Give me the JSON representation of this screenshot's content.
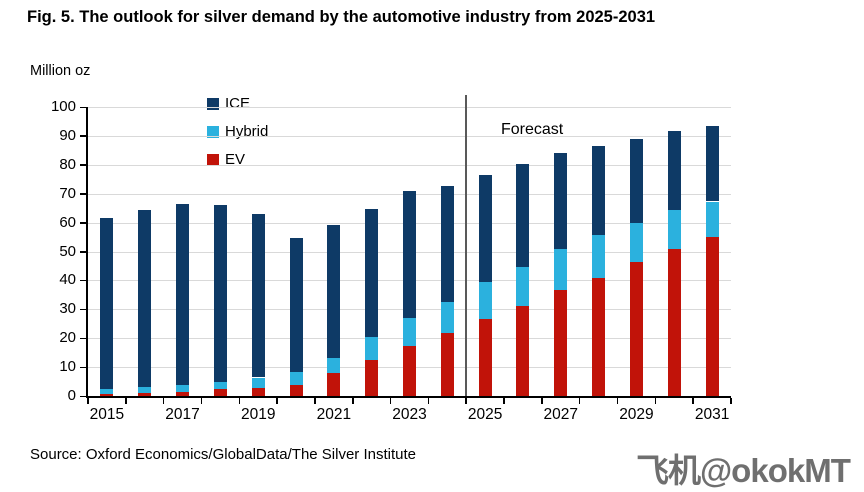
{
  "title": "Fig. 5. The outlook for silver demand by the automotive industry from 2025-2031",
  "y_axis_unit": "Million oz",
  "forecast_label": "Forecast",
  "source": "Source: Oxford Economics/GlobalData/The Silver Institute",
  "watermark": "飞机@okokMT",
  "colors": {
    "ice": "#0e3a66",
    "hybrid": "#2bb1de",
    "ev": "#c11309",
    "gridline": "#d9d9d9",
    "axis": "#000000",
    "forecast_divider": "#595959",
    "watermark": "#6f6f6f"
  },
  "legend": [
    {
      "name": "ice",
      "label": "ICE",
      "color": "#0e3a66"
    },
    {
      "name": "hybrid",
      "label": "Hybrid",
      "color": "#2bb1de"
    },
    {
      "name": "ev",
      "label": "EV",
      "color": "#c11309"
    }
  ],
  "chart_data": {
    "type": "bar",
    "stacked": true,
    "title": "Fig. 5. The outlook for silver demand by the automotive industry from 2025-2031",
    "ylabel": "Million oz",
    "xlabel": "",
    "ylim": [
      0,
      100
    ],
    "ytick_step": 10,
    "grid": true,
    "legend_position": "top-left-vertical",
    "categories": [
      2015,
      2016,
      2017,
      2018,
      2019,
      2020,
      2021,
      2022,
      2023,
      2024,
      2025,
      2026,
      2027,
      2028,
      2029,
      2030,
      2031
    ],
    "x_tick_labels": [
      "2015",
      "2017",
      "2019",
      "2021",
      "2023",
      "2025",
      "2027",
      "2029",
      "2031"
    ],
    "series": [
      {
        "name": "EV",
        "color": "#c11309",
        "values": [
          0.7,
          1.0,
          1.5,
          2.3,
          2.7,
          3.8,
          8.0,
          12.6,
          17.3,
          21.9,
          26.8,
          31.2,
          36.7,
          41.0,
          46.3,
          50.9,
          55.1
        ]
      },
      {
        "name": "Hybrid",
        "color": "#2bb1de",
        "values": [
          1.6,
          2.0,
          2.2,
          2.7,
          3.7,
          4.6,
          5.3,
          7.7,
          9.6,
          10.6,
          12.8,
          13.6,
          14.2,
          14.8,
          13.7,
          13.3,
          12.2
        ]
      },
      {
        "name": "ICE",
        "color": "#0e3a66",
        "values": [
          59.2,
          61.5,
          62.6,
          61.2,
          56.6,
          46.1,
          45.7,
          44.5,
          44.1,
          40.3,
          36.9,
          35.4,
          33.1,
          30.7,
          29.0,
          27.4,
          26.2
        ]
      }
    ],
    "forecast_start_category": 2025,
    "annotations": [
      {
        "text": "Forecast",
        "position": "above forecast divider, right side"
      }
    ]
  }
}
